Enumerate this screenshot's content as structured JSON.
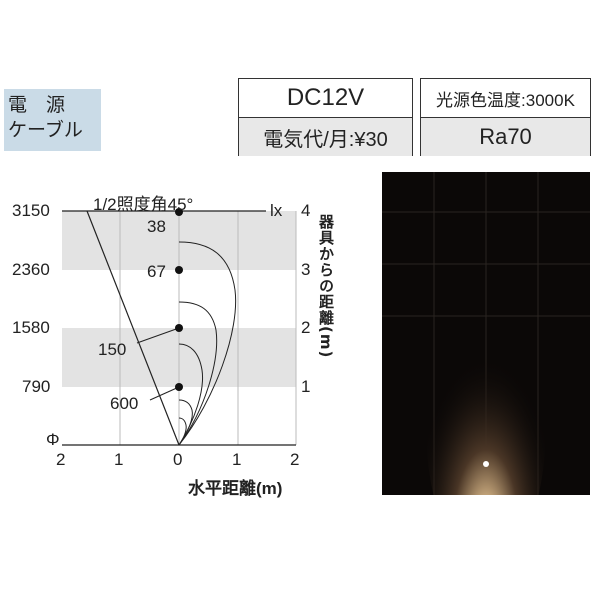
{
  "label": {
    "line1": "電　源",
    "line2": "ケーブル"
  },
  "spec_left": {
    "voltage": "DC12V",
    "cost": "電気代/月:¥30"
  },
  "spec_right": {
    "color_temp": "光源色温度:3000K",
    "cri": "Ra70"
  },
  "diagram": {
    "title": "1/2照度角45°",
    "half_angle_deg": 45,
    "lux_unit": "lx",
    "left_values": [
      "3150",
      "2360",
      "1580",
      "790"
    ],
    "phi": "Φ",
    "right_ticks": [
      "4",
      "3",
      "2",
      "1"
    ],
    "right_axis_label": "器具からの距離(m)",
    "x_ticks": [
      "2",
      "1",
      "0",
      "1",
      "2"
    ],
    "x_axis_label": "水平距離(m)",
    "lux_values": [
      {
        "label": "38",
        "distance_m": 4
      },
      {
        "label": "67",
        "distance_m": 3
      },
      {
        "label": "150",
        "distance_m": 2
      },
      {
        "label": "600",
        "distance_m": 1
      }
    ]
  },
  "colors": {
    "label_bg": "#cadbe7",
    "band": "#e3e3e3",
    "photo_bg": "#0b0807",
    "light": "#f3dfb0"
  }
}
